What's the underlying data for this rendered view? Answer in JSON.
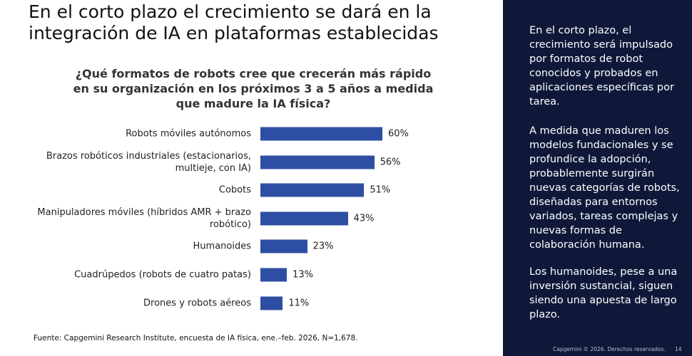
{
  "header": {
    "title": "En el corto plazo el crecimiento se dará en la integración de IA en plataformas establecidas"
  },
  "chart_data": {
    "type": "bar",
    "orientation": "horizontal",
    "title": "¿Qué formatos de robots cree que crecerán más rápido en su organización en los próximos 3 a 5 años a medida que madure la IA física?",
    "categories": [
      "Robots móviles autónomos",
      "Brazos robóticos industriales (estacionarios, multieje, con IA)",
      "Cobots",
      "Manipuladores móviles (híbridos AMR + brazo robótico)",
      "Humanoides",
      "Cuadrúpedos (robots de cuatro patas)",
      "Drones y robots aéreos"
    ],
    "values": [
      60,
      56,
      51,
      43,
      23,
      13,
      11
    ],
    "value_labels": [
      "60%",
      "56%",
      "51%",
      "43%",
      "23%",
      "13%",
      "11%"
    ],
    "color": "#2d4ea2"
  },
  "source": "Fuente: Capgemini Research Institute, encuesta de IA física, ene.–feb. 2026, N=1,678.",
  "sidebar": {
    "paragraphs": [
      "En el corto plazo, el crecimiento será impulsado por formatos de robot conocidos y probados en aplicaciones específicas por tarea.",
      "A medida que maduren los modelos fundacionales y se profundice la adopción, probablemente surgirán nuevas categorías de robots, diseñadas para entornos variados, tareas complejas y nuevas formas de colaboración humana.",
      "Los humanoides, pese a una inversión sustancial, siguen siendo una apuesta de largo plazo."
    ]
  },
  "footer": {
    "copyright": "Capgemini © 2026. Derechos reservados.",
    "page": "14"
  }
}
